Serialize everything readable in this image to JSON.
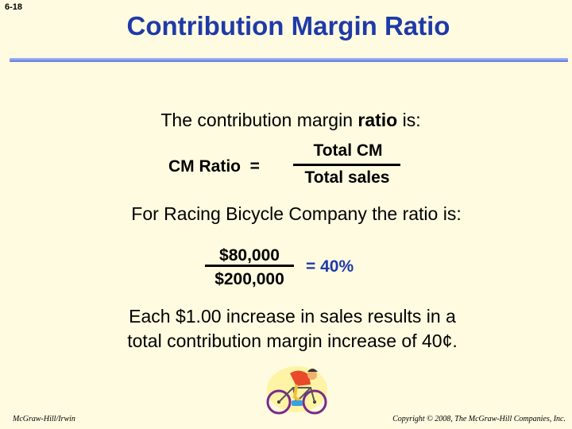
{
  "slide_number": "6-18",
  "title": "Contribution Margin Ratio",
  "intro": {
    "before": "The contribution margin ",
    "emphasis": "ratio",
    "after": " is:"
  },
  "formula": {
    "label": "CM Ratio  =",
    "numerator": "Total CM",
    "denominator": "Total sales"
  },
  "racing_text": "For Racing Bicycle Company the ratio is:",
  "computation": {
    "numerator": "$80,000",
    "denominator": "$200,000",
    "result": "= 40%"
  },
  "each_line1": "Each $1.00 increase in sales results in a",
  "each_line2": "total contribution margin increase of 40¢.",
  "footer_left": "McGraw-Hill/Irwin",
  "footer_right": "Copyright © 2008, The McGraw-Hill Companies, Inc.",
  "colors": {
    "title": "#1f3aa8",
    "background": "#fffbe0",
    "rule": "#5e78d6"
  },
  "icons": [
    "cyclist-icon"
  ]
}
